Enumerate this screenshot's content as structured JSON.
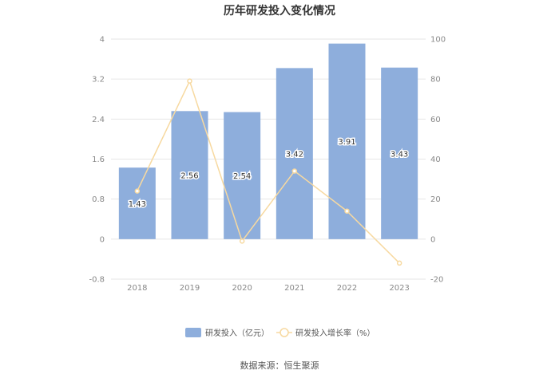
{
  "chart_data": {
    "type": "bar",
    "title": "历年研发投入变化情况",
    "categories": [
      "2018",
      "2019",
      "2020",
      "2021",
      "2022",
      "2023"
    ],
    "series": [
      {
        "name": "研发投入（亿元）",
        "type": "bar",
        "axis": "left",
        "color": "#8eaedc",
        "values": [
          1.43,
          2.56,
          2.54,
          3.42,
          3.91,
          3.43
        ],
        "labels": [
          "1.43",
          "2.56",
          "2.54",
          "3.42",
          "3.91",
          "3.43"
        ]
      },
      {
        "name": "研发投入增长率（%）",
        "type": "line",
        "axis": "right",
        "color": "#f7d9a0",
        "values": [
          24,
          79,
          -1,
          34,
          14,
          -12
        ]
      }
    ],
    "y_left": {
      "min": -0.8,
      "max": 4,
      "ticks": [
        "-0.8",
        "0",
        "0.8",
        "1.6",
        "2.4",
        "3.2",
        "4"
      ]
    },
    "y_right": {
      "min": -20,
      "max": 100,
      "ticks": [
        "-20",
        "0",
        "20",
        "40",
        "60",
        "80",
        "100"
      ]
    },
    "grid": true,
    "legend_position": "bottom-center"
  },
  "footer": {
    "source": "数据来源：恒生聚源"
  }
}
